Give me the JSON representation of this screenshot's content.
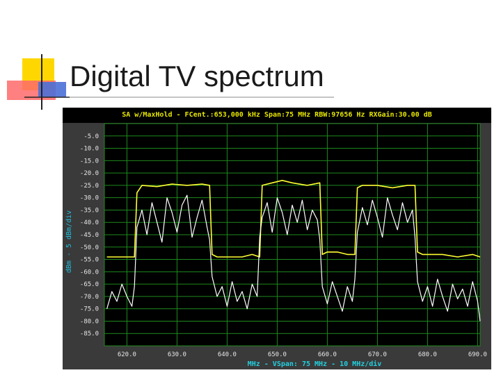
{
  "slide": {
    "title": "Digital TV spectrum"
  },
  "colors": {
    "background": "#000000",
    "panel": "#3a3a3a",
    "grid": "#1e8a1e",
    "trace_maxhold": "#ffff33",
    "trace_live": "#ffffff",
    "header_text": "#e6e600",
    "axis_text": "#e6e6e6",
    "footer_text": "#22d0e0",
    "ylabel_text": "#20c0e0"
  },
  "chart_data": {
    "type": "line",
    "title": "SA w/MaxHold - FCent.:653,000 kHz Span:75 MHz RBW:97656 Hz RXGain:30.00 dB",
    "xlabel": "MHz - VSpan: 75 MHz - 10 MHz/div",
    "ylabel": "dBm - 5 dBm/div",
    "xlim": [
      615.5,
      690.5
    ],
    "ylim": [
      -90,
      0
    ],
    "grid": true,
    "xticks": [
      620,
      630,
      640,
      650,
      660,
      670,
      680,
      690
    ],
    "xtick_labels": [
      "620.0",
      "630.0",
      "640.0",
      "650.0",
      "660.0",
      "670.0",
      "680.0",
      "690.0"
    ],
    "yticks": [
      -5,
      -10,
      -15,
      -20,
      -25,
      -30,
      -35,
      -40,
      -45,
      -50,
      -55,
      -60,
      -65,
      -70,
      -75,
      -80,
      -85
    ],
    "ytick_labels": [
      "-5.0",
      "-10.0",
      "-15.0",
      "-20.0",
      "-25.0",
      "-30.0",
      "-35.0",
      "-40.0",
      "-45.0",
      "-50.0",
      "-55.0",
      "-60.0",
      "-65.0",
      "-70.0",
      "-75.0",
      "-80.0",
      "-85.0"
    ],
    "series": [
      {
        "color": "#ffff33",
        "x": [
          616,
          620,
          621.5,
          622,
          623,
          626,
          629,
          632,
          635,
          636.5,
          637,
          638,
          641,
          643,
          645,
          646.5,
          647,
          649,
          651,
          653,
          656,
          658.5,
          659,
          660,
          662,
          664,
          665.5,
          666,
          667,
          670,
          673,
          676,
          677.5,
          678,
          679,
          681,
          683,
          686,
          689,
          690.5
        ],
        "y": [
          -54,
          -54,
          -54,
          -28,
          -25,
          -25.5,
          -24.5,
          -25,
          -24.5,
          -25,
          -53,
          -54,
          -54,
          -54,
          -53,
          -54,
          -25,
          -24,
          -23,
          -24,
          -25,
          -24,
          -53,
          -52,
          -52,
          -53,
          -53,
          -26,
          -25,
          -25,
          -26,
          -25,
          -25,
          -52,
          -53,
          -53,
          -53,
          -54,
          -53,
          -54
        ]
      },
      {
        "color": "#ffffff",
        "x": [
          616,
          617,
          618,
          619,
          620,
          621,
          621.5,
          622,
          623,
          624,
          625,
          626,
          627,
          628,
          629,
          630,
          631,
          632,
          633,
          634,
          635,
          636,
          636.5,
          637,
          638,
          639,
          640,
          641,
          642,
          643,
          644,
          645,
          646,
          646.5,
          647,
          648,
          649,
          650,
          651,
          652,
          653,
          654,
          655,
          656,
          657,
          658,
          658.5,
          659,
          660,
          661,
          662,
          663,
          664,
          665,
          665.5,
          666,
          667,
          668,
          669,
          670,
          671,
          672,
          673,
          674,
          675,
          676,
          677,
          677.5,
          678,
          679,
          680,
          681,
          682,
          683,
          684,
          685,
          686,
          687,
          688,
          689,
          690,
          690.5
        ],
        "y": [
          -75,
          -68,
          -72,
          -65,
          -70,
          -74,
          -66,
          -42,
          -35,
          -45,
          -32,
          -40,
          -48,
          -30,
          -36,
          -44,
          -33,
          -29,
          -46,
          -38,
          -31,
          -42,
          -47,
          -62,
          -70,
          -66,
          -74,
          -64,
          -72,
          -68,
          -75,
          -65,
          -70,
          -46,
          -38,
          -32,
          -44,
          -30,
          -36,
          -45,
          -33,
          -40,
          -31,
          -43,
          -35,
          -39,
          -47,
          -66,
          -73,
          -64,
          -70,
          -76,
          -66,
          -72,
          -63,
          -44,
          -34,
          -41,
          -31,
          -38,
          -46,
          -30,
          -37,
          -43,
          -32,
          -40,
          -35,
          -46,
          -64,
          -72,
          -66,
          -74,
          -63,
          -70,
          -76,
          -65,
          -71,
          -67,
          -74,
          -64,
          -72,
          -80
        ]
      }
    ]
  }
}
